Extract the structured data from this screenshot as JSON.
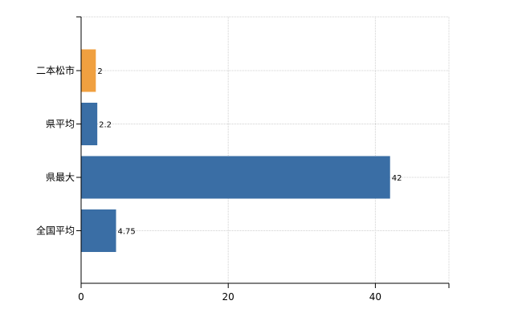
{
  "chart_data": {
    "type": "bar",
    "orientation": "horizontal",
    "categories": [
      "二本松市",
      "県平均",
      "県最大",
      "全国平均"
    ],
    "values": [
      2,
      2.2,
      42,
      4.75
    ],
    "value_labels": [
      "2",
      "2.2",
      "42",
      "4.75"
    ],
    "bar_colors": [
      "#f0a040",
      "#3a6ea5",
      "#3a6ea5",
      "#3a6ea5"
    ],
    "xlim": [
      0,
      50
    ],
    "x_ticks": [
      0,
      20,
      40
    ],
    "grid": true,
    "title": "",
    "xlabel": "",
    "ylabel": ""
  }
}
